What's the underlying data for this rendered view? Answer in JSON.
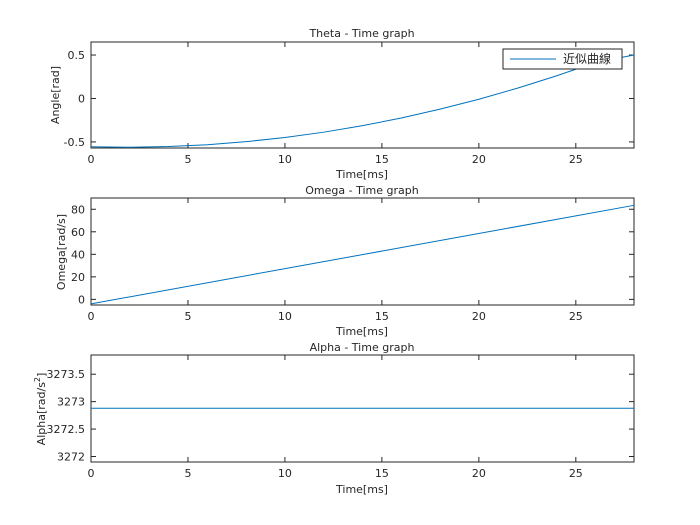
{
  "chart_data": [
    {
      "type": "line",
      "title": "Theta - Time graph",
      "xlabel": "Time[ms]",
      "ylabel": "Angle[rad]",
      "xlim": [
        0,
        28
      ],
      "ylim": [
        -0.57,
        0.65
      ],
      "xticks": [
        0,
        5,
        10,
        15,
        20,
        25
      ],
      "yticks": [
        -0.5,
        0,
        0.5
      ],
      "ytick_labels": [
        "-0.5",
        "0",
        "0.5"
      ],
      "grid": false,
      "legend_position": "top-right",
      "series": [
        {
          "name": "近似曲線",
          "color": "#0072BD",
          "x": [
            0,
            2,
            4,
            6,
            8,
            10,
            12,
            14,
            16,
            18,
            20,
            22,
            24,
            26,
            28
          ],
          "y": [
            -0.555,
            -0.561,
            -0.553,
            -0.532,
            -0.497,
            -0.449,
            -0.388,
            -0.313,
            -0.225,
            -0.123,
            -0.009,
            0.119,
            0.26,
            0.414,
            0.5
          ]
        }
      ]
    },
    {
      "type": "line",
      "title": "Omega - Time graph",
      "xlabel": "Time[ms]",
      "ylabel": "Omega[rad/s]",
      "xlim": [
        0,
        28
      ],
      "ylim": [
        -5,
        90
      ],
      "xticks": [
        0,
        5,
        10,
        15,
        20,
        25
      ],
      "yticks": [
        0,
        20,
        40,
        60,
        80
      ],
      "ytick_labels": [
        "0",
        "20",
        "40",
        "60",
        "80"
      ],
      "grid": false,
      "series": [
        {
          "name": "",
          "color": "#0072BD",
          "x": [
            0,
            28
          ],
          "y": [
            -4,
            83.5
          ]
        }
      ]
    },
    {
      "type": "line",
      "title": "Alpha - Time graph",
      "xlabel": "Time[ms]",
      "ylabel_main": "Alpha[rad/s",
      "ylabel_sup": "2",
      "ylabel_end": "]",
      "xlim": [
        0,
        28
      ],
      "ylim": [
        3271.9,
        3273.85
      ],
      "xticks": [
        0,
        5,
        10,
        15,
        20,
        25
      ],
      "yticks": [
        3272,
        3272.5,
        3273,
        3273.5
      ],
      "ytick_labels": [
        "3272",
        "3272.5",
        "3273",
        "3273.5"
      ],
      "grid": false,
      "series": [
        {
          "name": "",
          "color": "#0072BD",
          "x": [
            0,
            28
          ],
          "y": [
            3272.88,
            3272.88
          ]
        }
      ]
    }
  ]
}
